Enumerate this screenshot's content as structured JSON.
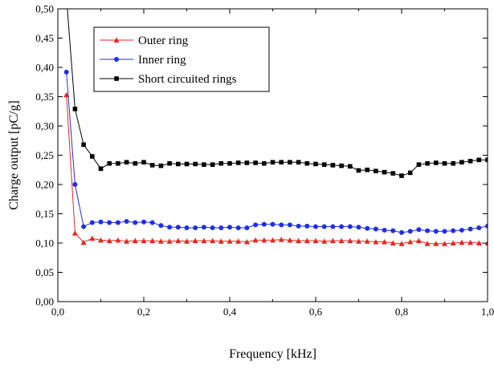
{
  "chart_data": {
    "type": "line",
    "xlabel": "Frequency [kHz]",
    "ylabel": "Charge output [pC/g]",
    "xlim": [
      0.0,
      1.0
    ],
    "ylim": [
      0.0,
      0.5
    ],
    "x_ticks": [
      "0,0",
      "0,2",
      "0,4",
      "0,6",
      "0,8",
      "1,0"
    ],
    "y_ticks": [
      "0,00",
      "0,05",
      "0,10",
      "0,15",
      "0,20",
      "0,25",
      "0,30",
      "0,35",
      "0,40",
      "0,45",
      "0,50"
    ],
    "x_tick_values": [
      0.0,
      0.2,
      0.4,
      0.6,
      0.8,
      1.0
    ],
    "y_tick_values": [
      0.0,
      0.05,
      0.1,
      0.15,
      0.2,
      0.25,
      0.3,
      0.35,
      0.4,
      0.45,
      0.5
    ],
    "grid": false,
    "legend_position": "top-left",
    "x": [
      0.02,
      0.04,
      0.06,
      0.08,
      0.1,
      0.12,
      0.14,
      0.16,
      0.18,
      0.2,
      0.22,
      0.24,
      0.26,
      0.28,
      0.3,
      0.32,
      0.34,
      0.36,
      0.38,
      0.4,
      0.42,
      0.44,
      0.46,
      0.48,
      0.5,
      0.52,
      0.54,
      0.56,
      0.58,
      0.6,
      0.62,
      0.64,
      0.66,
      0.68,
      0.7,
      0.72,
      0.74,
      0.76,
      0.78,
      0.8,
      0.82,
      0.84,
      0.86,
      0.88,
      0.9,
      0.92,
      0.94,
      0.96,
      0.98,
      1.0
    ],
    "series": [
      {
        "name": "Outer ring",
        "color": "#e8251f",
        "marker": "triangle",
        "values": [
          0.353,
          0.117,
          0.101,
          0.108,
          0.105,
          0.104,
          0.105,
          0.103,
          0.104,
          0.104,
          0.104,
          0.103,
          0.103,
          0.104,
          0.103,
          0.104,
          0.104,
          0.104,
          0.103,
          0.103,
          0.103,
          0.102,
          0.105,
          0.105,
          0.105,
          0.106,
          0.105,
          0.104,
          0.104,
          0.104,
          0.103,
          0.104,
          0.104,
          0.104,
          0.103,
          0.103,
          0.102,
          0.102,
          0.1,
          0.099,
          0.102,
          0.104,
          0.099,
          0.099,
          0.099,
          0.1,
          0.101,
          0.101,
          0.1,
          0.1
        ]
      },
      {
        "name": "Inner ring",
        "color": "#1f2ee8",
        "marker": "circle",
        "values": [
          0.392,
          0.2,
          0.128,
          0.135,
          0.136,
          0.135,
          0.135,
          0.137,
          0.135,
          0.136,
          0.135,
          0.13,
          0.127,
          0.127,
          0.126,
          0.126,
          0.127,
          0.126,
          0.126,
          0.127,
          0.126,
          0.126,
          0.131,
          0.132,
          0.132,
          0.131,
          0.131,
          0.129,
          0.129,
          0.128,
          0.128,
          0.128,
          0.128,
          0.128,
          0.127,
          0.125,
          0.124,
          0.122,
          0.121,
          0.118,
          0.12,
          0.123,
          0.121,
          0.12,
          0.12,
          0.121,
          0.122,
          0.124,
          0.126,
          0.129
        ]
      },
      {
        "name": "Short circuited rings",
        "color": "#000000",
        "marker": "square",
        "values": [
          0.52,
          0.329,
          0.268,
          0.248,
          0.227,
          0.236,
          0.236,
          0.238,
          0.236,
          0.238,
          0.233,
          0.232,
          0.236,
          0.235,
          0.235,
          0.235,
          0.234,
          0.234,
          0.236,
          0.236,
          0.237,
          0.237,
          0.237,
          0.236,
          0.238,
          0.238,
          0.238,
          0.238,
          0.236,
          0.235,
          0.234,
          0.233,
          0.232,
          0.231,
          0.224,
          0.225,
          0.223,
          0.221,
          0.219,
          0.215,
          0.22,
          0.234,
          0.236,
          0.237,
          0.236,
          0.236,
          0.238,
          0.24,
          0.242,
          0.242
        ]
      }
    ]
  }
}
